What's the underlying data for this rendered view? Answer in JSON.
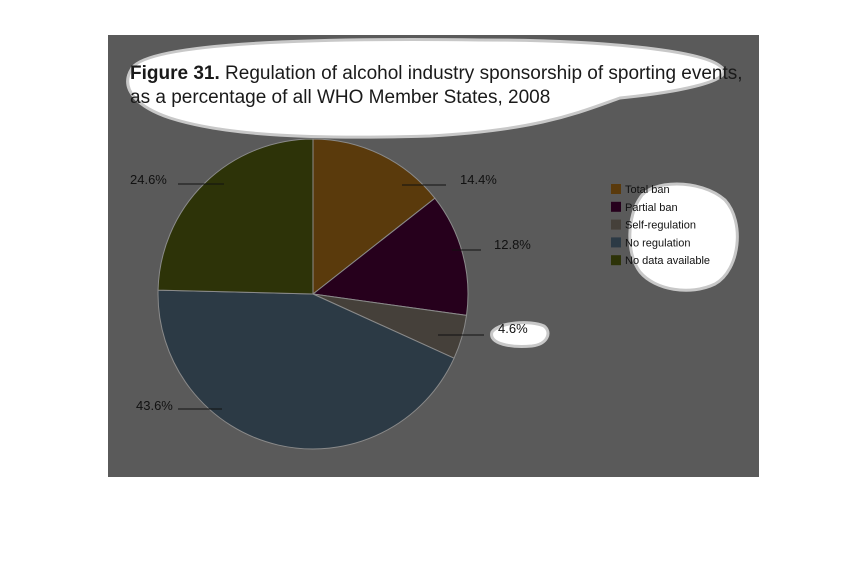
{
  "title": {
    "prefix": "Figure 31.",
    "line1": " Regulation of alcohol industry sponsorship of sporting events,",
    "line2": "as a percentage of all WHO Member States, 2008"
  },
  "colors": {
    "panel": "#5a5a5a",
    "Total ban": "#5a3a0c",
    "Partial ban": "#26001c",
    "Self-regulation": "#45403a",
    "No regulation": "#2c3a45",
    "No data available": "#2d3308"
  },
  "chart_data": {
    "type": "pie",
    "title": "Regulation of alcohol industry sponsorship of sporting events, as a percentage of all WHO Member States, 2008",
    "legend_position": "right",
    "categories": [
      "Total ban",
      "Partial ban",
      "Self-regulation",
      "No regulation",
      "No data available"
    ],
    "values": [
      14.4,
      12.8,
      4.6,
      43.6,
      24.6
    ],
    "labels": [
      "14.4%",
      "12.8%",
      "4.6%",
      "43.6%",
      "24.6%"
    ]
  }
}
